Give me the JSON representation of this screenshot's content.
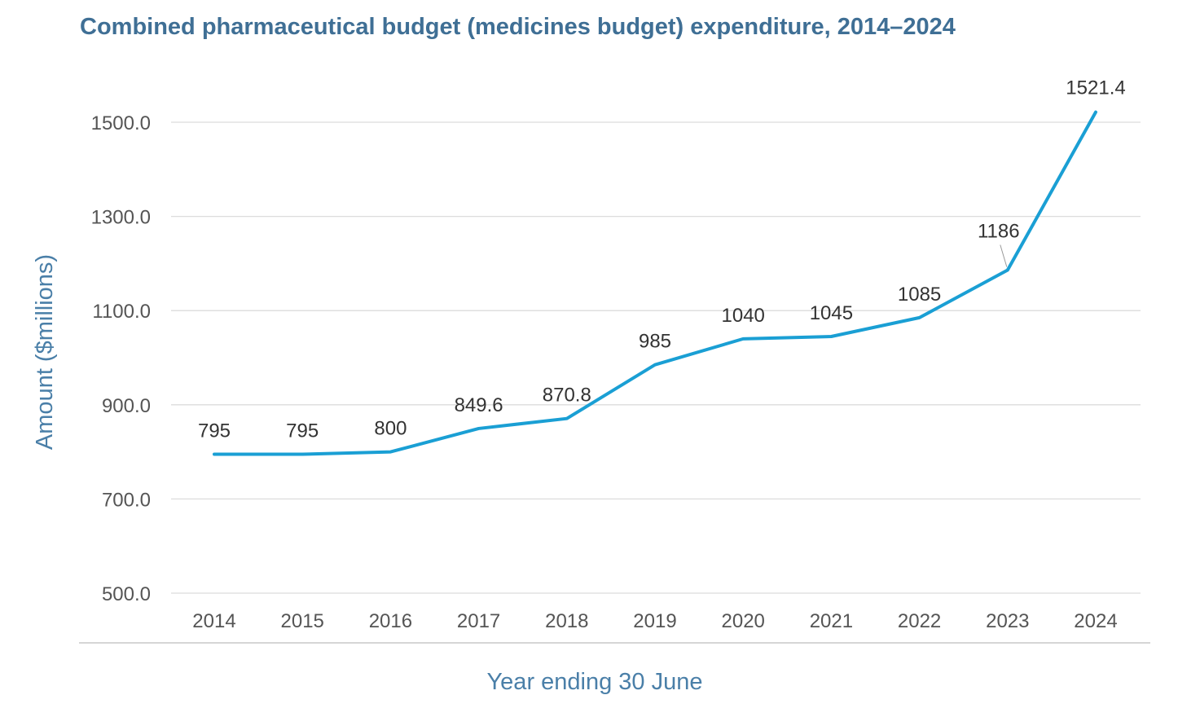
{
  "chart_data": {
    "type": "line",
    "title": "Combined pharmaceutical budget (medicines budget) expenditure, 2014–2024",
    "xlabel": "Year ending 30 June",
    "ylabel": "Amount ($millions)",
    "categories": [
      "2014",
      "2015",
      "2016",
      "2017",
      "2018",
      "2019",
      "2020",
      "2021",
      "2022",
      "2023",
      "2024"
    ],
    "values": [
      795,
      795,
      800,
      849.6,
      870.8,
      985,
      1040,
      1045,
      1085,
      1186,
      1521.4
    ],
    "data_labels": [
      "795",
      "795",
      "800",
      "849.6",
      "870.8",
      "985",
      "1040",
      "1045",
      "1085",
      "1186",
      "1521.4"
    ],
    "ylim": [
      500,
      1500
    ],
    "yticks": [
      "500.0",
      "700.0",
      "900.0",
      "1100.0",
      "1300.0",
      "1500.0"
    ],
    "ytick_values": [
      500,
      700,
      900,
      1100,
      1300,
      1500
    ],
    "grid": true,
    "legend": "none",
    "line_color": "#1a9fd4",
    "title_color": "#3f6f95"
  }
}
